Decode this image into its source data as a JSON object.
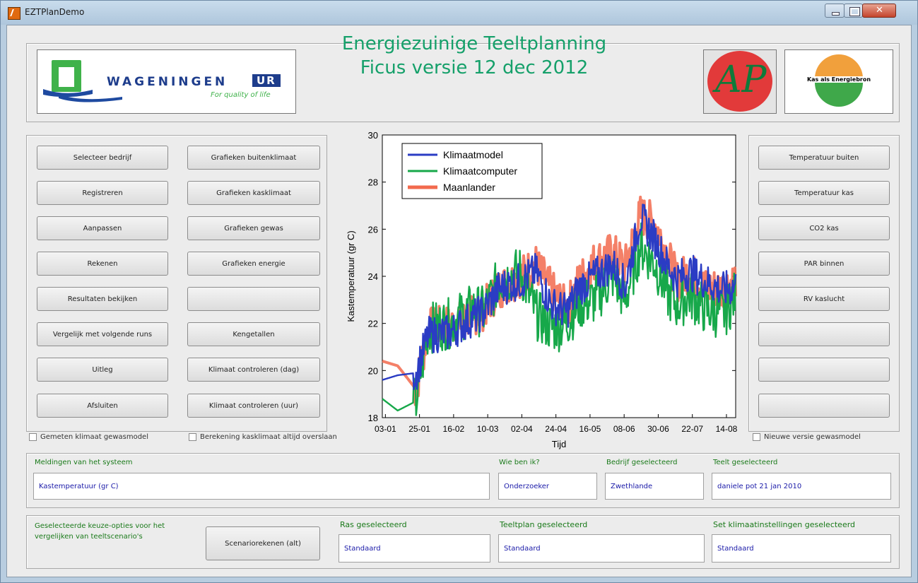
{
  "window": {
    "title": "EZTPlanDemo"
  },
  "header": {
    "title_line1": "Energiezuinige Teeltplanning",
    "title_line2": "Ficus versie 12 dec 2012",
    "logos": {
      "wur_text": "WAGENINGEN",
      "wur_ur": "UR",
      "wur_tagline": "For quality of life",
      "ap_text": "AP",
      "kas_text": "Kas als Energiebron"
    }
  },
  "left_buttons": {
    "col1": [
      "Selecteer bedrijf",
      "Registreren",
      "Aanpassen",
      "Rekenen",
      "Resultaten bekijken",
      "Vergelijk met volgende runs",
      "Uitleg",
      "Afsluiten"
    ],
    "col2": [
      "Grafieken buitenklimaat",
      "Grafieken kasklimaat",
      "Grafieken gewas",
      "Grafieken energie",
      "",
      "Kengetallen",
      "Klimaat controleren (dag)",
      "Klimaat controleren (uur)"
    ]
  },
  "right_buttons": [
    "Temperatuur buiten",
    "Temperatuur kas",
    "CO2 kas",
    "PAR binnen",
    "RV kaslucht",
    "",
    "",
    ""
  ],
  "checkboxes": {
    "measured_climate": "Gemeten klimaat gewasmodel",
    "skip_calc": "Berekening kasklimaat altijd overslaan",
    "new_version": "Nieuwe versie gewasmodel"
  },
  "status": {
    "messages_label": "Meldingen van het systeem",
    "messages_value": "Kastemperatuur (gr C)",
    "who_label": "Wie ben ik?",
    "who_value": "Onderzoeker",
    "company_label": "Bedrijf geselecteerd",
    "company_value": "Zwethlande",
    "crop_label": "Teelt geselecteerd",
    "crop_value": "daniele pot 21 jan 2010"
  },
  "options": {
    "text": "Geselecteerde keuze-opties voor het vergelijken van teeltscenario's",
    "button": "Scenariorekenen (alt)",
    "ras_label": "Ras geselecteerd",
    "ras_value": "Standaard",
    "teeltplan_label": "Teeltplan geselecteerd",
    "teeltplan_value": "Standaard",
    "klimaat_label": "Set klimaatinstellingen geselecteerd",
    "klimaat_value": "Standaard"
  },
  "chart_data": {
    "type": "line",
    "title": "",
    "xlabel": "Tijd",
    "ylabel": "Kastemperatuur (gr C)",
    "ylim": [
      18,
      30
    ],
    "yticks": [
      18,
      20,
      22,
      24,
      26,
      28,
      30
    ],
    "xlim_days": [
      0,
      230
    ],
    "xtick_labels": [
      "03-01",
      "25-01",
      "16-02",
      "10-03",
      "02-04",
      "24-04",
      "16-05",
      "08-06",
      "30-06",
      "22-07",
      "14-08"
    ],
    "legend_position": "top-left",
    "series": [
      {
        "name": "Klimaatmodel",
        "color": "#2b3cc4"
      },
      {
        "name": "Klimaatcomputer",
        "color": "#17a84a"
      },
      {
        "name": "Maanlander",
        "color": "#f26a4e"
      }
    ],
    "daily_points": {
      "x": [
        0,
        10,
        22,
        30,
        44,
        58,
        66,
        76,
        90,
        100,
        110,
        120,
        128,
        138,
        150,
        158,
        168,
        178,
        186,
        192,
        200,
        210,
        222,
        230
      ],
      "Klimaatmodel": [
        19.6,
        19.8,
        19.9,
        21.5,
        21.6,
        22.2,
        22.5,
        23.5,
        23.8,
        24.2,
        22.8,
        22.5,
        23.5,
        24.0,
        24.5,
        23.6,
        26.5,
        25.5,
        24.4,
        23.9,
        24.2,
        23.8,
        23.4,
        23.6
      ],
      "Klimaatcomputer": [
        18.8,
        18.3,
        18.7,
        21.8,
        22.0,
        22.6,
        22.5,
        23.8,
        24.2,
        22.4,
        21.8,
        22.0,
        22.8,
        23.0,
        24.0,
        23.0,
        25.3,
        24.5,
        23.2,
        22.8,
        23.2,
        22.6,
        22.4,
        23.2
      ],
      "Maanlander": [
        20.4,
        20.2,
        19.2,
        21.8,
        21.9,
        22.3,
        22.6,
        23.5,
        24.0,
        24.5,
        23.4,
        22.6,
        23.8,
        24.6,
        25.0,
        24.4,
        26.6,
        26.2,
        24.8,
        23.8,
        24.2,
        23.5,
        23.5,
        23.9
      ]
    }
  }
}
